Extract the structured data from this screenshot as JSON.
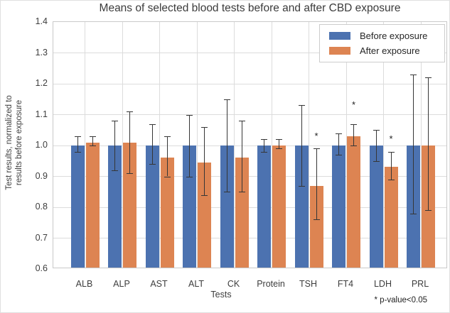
{
  "figure": {
    "title": "Means of selected blood tests before and after CBD exposure",
    "xlabel": "Tests",
    "ylabel": "Test results, normalized to\nresults before exposure",
    "note": "* p-value<0.05"
  },
  "legend": {
    "items": [
      {
        "label": "Before exposure",
        "color": "#4C72B0"
      },
      {
        "label": "After exposure",
        "color": "#DD8452"
      }
    ]
  },
  "colors": {
    "before_bar": "#4C72B0",
    "after_bar": "#DD8452",
    "grid": "#dcdcdc",
    "frame": "#c9c9c9",
    "error_bar": "#363636"
  },
  "chart_data": {
    "type": "bar",
    "title": "Means of selected blood tests before and after CBD exposure",
    "xlabel": "Tests",
    "ylabel": "Test results, normalized to results before exposure",
    "ylim": [
      0.6,
      1.4
    ],
    "ytick_step": 0.1,
    "grid": true,
    "legend_position": "upper right",
    "categories": [
      "ALB",
      "ALP",
      "AST",
      "ALT",
      "CK",
      "Protein",
      "TSH",
      "FT4",
      "LDH",
      "PRL"
    ],
    "series": [
      {
        "name": "Before exposure",
        "color": "#4C72B0",
        "values": [
          1.0,
          1.0,
          1.0,
          1.0,
          1.0,
          1.0,
          1.0,
          1.0,
          1.0,
          1.0
        ],
        "err_low": [
          0.98,
          0.92,
          0.94,
          0.9,
          0.85,
          0.98,
          0.87,
          0.97,
          0.95,
          0.78
        ],
        "err_high": [
          1.03,
          1.08,
          1.07,
          1.1,
          1.15,
          1.02,
          1.13,
          1.04,
          1.05,
          1.23
        ]
      },
      {
        "name": "After exposure",
        "color": "#DD8452",
        "values": [
          1.01,
          1.01,
          0.96,
          0.945,
          0.96,
          1.0,
          0.87,
          1.03,
          0.93,
          1.0
        ],
        "err_low": [
          1.0,
          0.91,
          0.9,
          0.84,
          0.85,
          0.99,
          0.76,
          1.0,
          0.89,
          0.79
        ],
        "err_high": [
          1.03,
          1.11,
          1.03,
          1.06,
          1.08,
          1.02,
          0.99,
          1.07,
          0.98,
          1.22
        ]
      }
    ],
    "significance": [
      {
        "category": "TSH",
        "marker": "*",
        "y": 1.03
      },
      {
        "category": "FT4",
        "marker": "*",
        "y": 1.13
      },
      {
        "category": "LDH",
        "marker": "*",
        "y": 1.02
      }
    ],
    "annotation": "* p-value<0.05"
  }
}
